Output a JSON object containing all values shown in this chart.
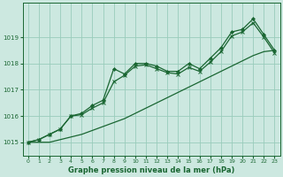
{
  "xlabel": "Graphe pression niveau de la mer (hPa)",
  "background_color": "#cce8e0",
  "grid_color": "#99ccbb",
  "line_color": "#1a6632",
  "xlim": [
    -0.5,
    23.5
  ],
  "ylim": [
    1014.5,
    1020.3
  ],
  "yticks": [
    1015,
    1016,
    1017,
    1018,
    1019
  ],
  "xticks": [
    0,
    1,
    2,
    3,
    4,
    5,
    6,
    7,
    8,
    9,
    10,
    11,
    12,
    13,
    14,
    15,
    16,
    17,
    18,
    19,
    20,
    21,
    22,
    23
  ],
  "y_main": [
    1015.0,
    1015.1,
    1015.3,
    1015.5,
    1016.0,
    1016.1,
    1016.4,
    1016.6,
    1017.8,
    1017.6,
    1018.0,
    1018.0,
    1017.9,
    1017.7,
    1017.7,
    1018.0,
    1017.8,
    1018.2,
    1018.6,
    1019.2,
    1019.3,
    1019.7,
    1019.1,
    1018.5
  ],
  "y_second": [
    1015.0,
    1015.1,
    1015.3,
    1015.5,
    1016.0,
    1016.05,
    1016.3,
    1016.5,
    1017.3,
    1017.55,
    1017.9,
    1017.95,
    1017.8,
    1017.65,
    1017.6,
    1017.85,
    1017.7,
    1018.05,
    1018.45,
    1019.05,
    1019.2,
    1019.55,
    1019.0,
    1018.4
  ],
  "y_linear": [
    1015.0,
    1015.0,
    1015.0,
    1015.1,
    1015.2,
    1015.3,
    1015.45,
    1015.6,
    1015.75,
    1015.9,
    1016.1,
    1016.3,
    1016.5,
    1016.7,
    1016.9,
    1017.1,
    1017.3,
    1017.5,
    1017.7,
    1017.9,
    1018.1,
    1018.3,
    1018.45,
    1018.5
  ]
}
